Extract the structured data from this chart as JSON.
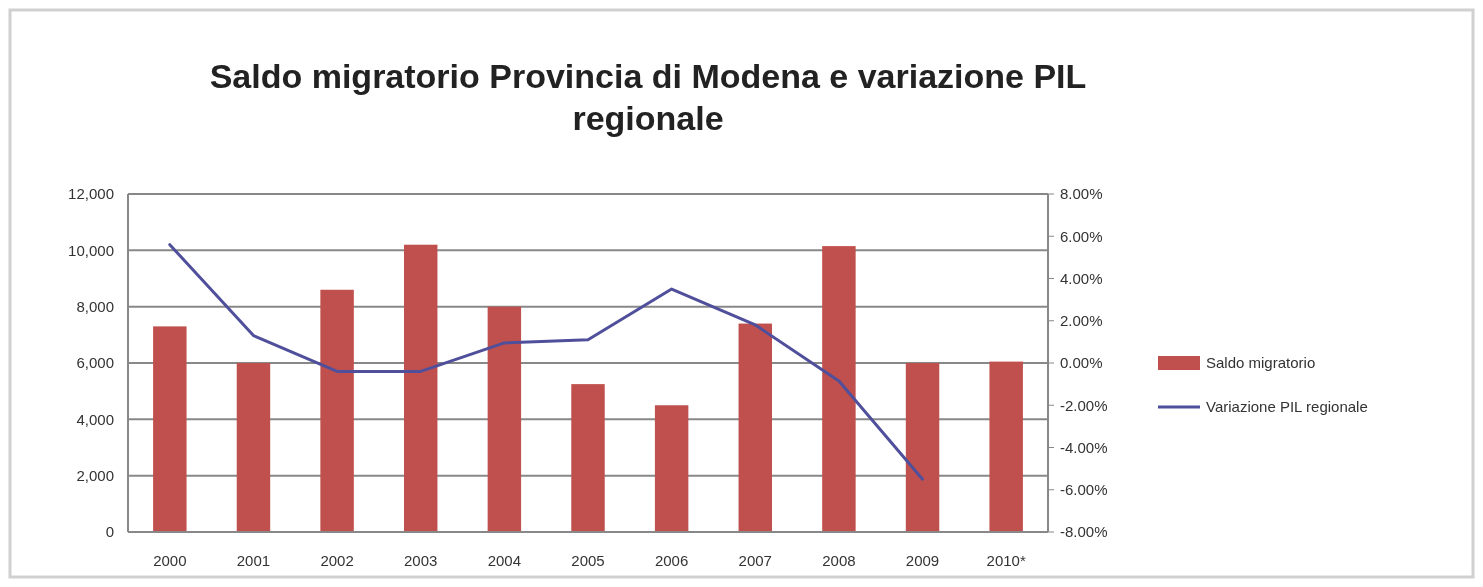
{
  "chart_data": {
    "type": "bar",
    "title": "Saldo migratorio Provincia di Modena e variazione PIL regionale",
    "categories": [
      "2000",
      "2001",
      "2002",
      "2003",
      "2004",
      "2005",
      "2006",
      "2007",
      "2008",
      "2009",
      "2010*"
    ],
    "series": [
      {
        "name": "Saldo migratorio",
        "color": "#c0504d",
        "values": [
          7300,
          6000,
          8600,
          10200,
          8000,
          5250,
          4500,
          7400,
          10150,
          6000,
          6050
        ]
      },
      {
        "name": "Variazione PIL regionale",
        "type": "line",
        "axis": "y2",
        "color": "#4f4f9b",
        "values": [
          5.6,
          1.3,
          -0.4,
          -0.4,
          0.95,
          1.1,
          3.5,
          1.8,
          -0.85,
          -5.5,
          null
        ]
      }
    ],
    "ylim": [
      0,
      12000
    ],
    "yticks": [
      {
        "value": 0,
        "label": "0"
      },
      {
        "value": 2000,
        "label": "2,000"
      },
      {
        "value": 4000,
        "label": "4,000"
      },
      {
        "value": 6000,
        "label": "6,000"
      },
      {
        "value": 8000,
        "label": "8,000"
      },
      {
        "value": 10000,
        "label": "10,000"
      },
      {
        "value": 12000,
        "label": "12,000"
      }
    ],
    "y2lim": [
      -8,
      8
    ],
    "y2ticks": [
      {
        "value": -8,
        "label": "-8.00%"
      },
      {
        "value": -6,
        "label": "-6.00%"
      },
      {
        "value": -4,
        "label": "-4.00%"
      },
      {
        "value": -2,
        "label": "-2.00%"
      },
      {
        "value": 0,
        "label": "0.00%"
      },
      {
        "value": 2,
        "label": "2.00%"
      },
      {
        "value": 4,
        "label": "4.00%"
      },
      {
        "value": 6,
        "label": "6.00%"
      },
      {
        "value": 8,
        "label": "8.00%"
      }
    ],
    "grid": "y",
    "legend": "right",
    "marker": "none",
    "line_style": "solid"
  }
}
